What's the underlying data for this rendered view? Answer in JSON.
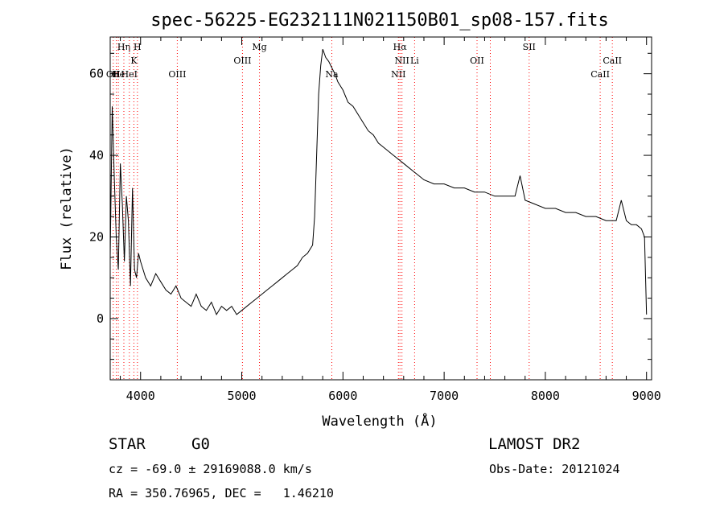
{
  "chart_data": {
    "type": "line",
    "title": "spec-56225-EG232111N021150B01_sp08-157.fits",
    "xlabel": "Wavelength (Å)",
    "ylabel": "Flux (relative)",
    "xlim": [
      3700,
      9050
    ],
    "ylim": [
      -15,
      69
    ],
    "xticks": [
      4000,
      5000,
      6000,
      7000,
      8000,
      9000
    ],
    "yticks": [
      0,
      20,
      40,
      60
    ],
    "grid": false,
    "series": [
      {
        "x": [
          3700,
          3720,
          3740,
          3760,
          3780,
          3800,
          3820,
          3840,
          3860,
          3880,
          3900,
          3920,
          3940,
          3960,
          3980,
          4000,
          4050,
          4100,
          4150,
          4200,
          4250,
          4300,
          4350,
          4400,
          4450,
          4500,
          4550,
          4600,
          4650,
          4700,
          4750,
          4800,
          4850,
          4900,
          4950,
          5000,
          5050,
          5100,
          5150,
          5200,
          5250,
          5300,
          5350,
          5400,
          5450,
          5500,
          5550,
          5600,
          5650,
          5700,
          5720,
          5740,
          5760,
          5780,
          5800,
          5830,
          5860,
          5880,
          5900,
          5920,
          5950,
          6000,
          6050,
          6100,
          6150,
          6200,
          6250,
          6300,
          6350,
          6400,
          6450,
          6500,
          6550,
          6600,
          6650,
          6700,
          6750,
          6800,
          6900,
          7000,
          7100,
          7200,
          7300,
          7400,
          7500,
          7600,
          7700,
          7750,
          7800,
          7900,
          8000,
          8100,
          8200,
          8300,
          8400,
          8500,
          8600,
          8700,
          8750,
          8800,
          8850,
          8900,
          8950,
          8980,
          9000
        ],
        "y": [
          15,
          52,
          35,
          20,
          12,
          38,
          28,
          14,
          30,
          24,
          8,
          32,
          12,
          10,
          16,
          14,
          10,
          8,
          11,
          9,
          7,
          6,
          8,
          5,
          4,
          3,
          6,
          3,
          2,
          4,
          1,
          3,
          2,
          3,
          1,
          2,
          3,
          4,
          5,
          6,
          7,
          8,
          9,
          10,
          11,
          12,
          13,
          15,
          16,
          18,
          25,
          40,
          55,
          62,
          66,
          64,
          63,
          62,
          61,
          60,
          58,
          56,
          53,
          52,
          50,
          48,
          46,
          45,
          43,
          42,
          41,
          40,
          39,
          38,
          37,
          36,
          35,
          34,
          33,
          33,
          32,
          32,
          31,
          31,
          30,
          30,
          30,
          35,
          29,
          28,
          27,
          27,
          26,
          26,
          25,
          25,
          24,
          24,
          29,
          24,
          23,
          23,
          22,
          20,
          1
        ]
      }
    ],
    "lines": [
      {
        "x": 3730,
        "label": "OII",
        "row": 2
      },
      {
        "x": 3760,
        "label": "H",
        "row": 2
      },
      {
        "x": 3780,
        "label": "He",
        "row": 2
      },
      {
        "x": 3835,
        "label": "Hη",
        "row": 0
      },
      {
        "x": 3889,
        "label": "HeI",
        "row": 2
      },
      {
        "x": 3934,
        "label": "K",
        "row": 1
      },
      {
        "x": 3969,
        "label": "H",
        "row": 0
      },
      {
        "x": 4363,
        "label": "OIII",
        "row": 2
      },
      {
        "x": 5007,
        "label": "OIII",
        "row": 1
      },
      {
        "x": 5175,
        "label": "Mg",
        "row": 0
      },
      {
        "x": 5890,
        "label": "Na",
        "row": 2
      },
      {
        "x": 6548,
        "label": "NII",
        "row": 2
      },
      {
        "x": 6563,
        "label": "Hα",
        "row": 0
      },
      {
        "x": 6583,
        "label": "NII",
        "row": 1
      },
      {
        "x": 6708,
        "label": "Li",
        "row": 1
      },
      {
        "x": 7325,
        "label": "OII",
        "row": 1
      },
      {
        "x": 7325,
        "label": "",
        "row": 1
      },
      {
        "x": 7456,
        "label": "",
        "row": 1
      },
      {
        "x": 7840,
        "label": "SII",
        "row": 0
      },
      {
        "x": 8542,
        "label": "CaII",
        "row": 2
      },
      {
        "x": 8662,
        "label": "CaII",
        "row": 1
      }
    ],
    "line_color": "#ff0000"
  },
  "footer": {
    "object_class": "STAR",
    "subclass": "G0",
    "survey": "LAMOST DR2",
    "redshift_text": "cz = -69.0 ± 29169088.0 km/s",
    "obs_date_text": "Obs-Date: 20121024",
    "coords_text": "RA = 350.76965, DEC =   1.46210"
  }
}
